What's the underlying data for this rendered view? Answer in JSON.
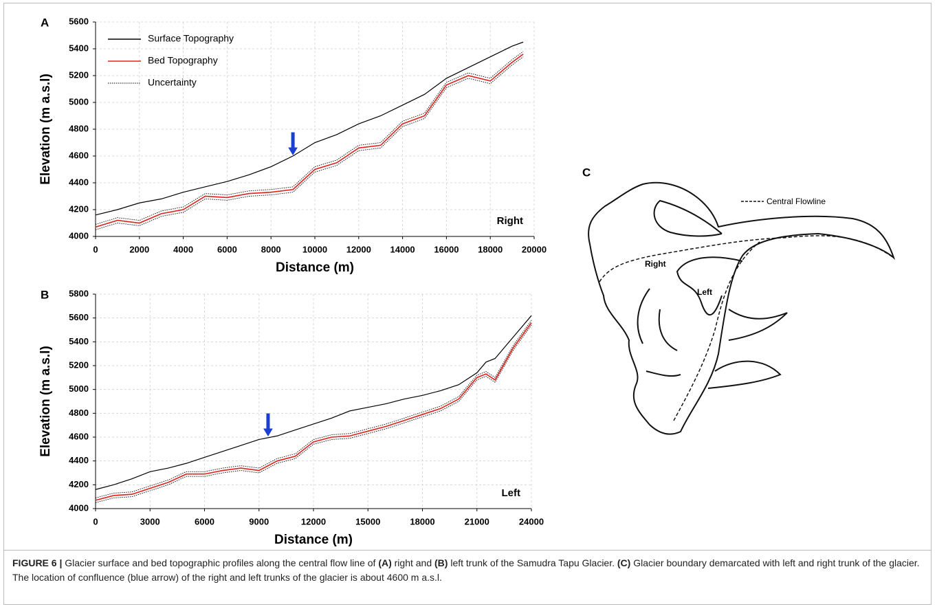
{
  "chart_data": [
    {
      "type": "line",
      "panel": "A",
      "xlabel": "Distance (m)",
      "ylabel": "Elevation (m a.s.l)",
      "annotation": "Right",
      "legend": true,
      "legend_position": "upper left",
      "grid": true,
      "xlim": [
        0,
        20000
      ],
      "xticks": [
        0,
        2000,
        4000,
        6000,
        8000,
        10000,
        12000,
        14000,
        16000,
        18000,
        20000
      ],
      "ylim": [
        4000,
        5600
      ],
      "yticks": [
        4000,
        4200,
        4400,
        4600,
        4800,
        5000,
        5200,
        5400,
        5600
      ],
      "arrow": {
        "x": 9000,
        "y": 4600,
        "color": "#1a3fd1"
      },
      "x": [
        0,
        1000,
        2000,
        3000,
        4000,
        5000,
        6000,
        7000,
        8000,
        9000,
        10000,
        11000,
        12000,
        13000,
        14000,
        15000,
        16000,
        17000,
        18000,
        19000,
        19500
      ],
      "series": [
        {
          "name": "Surface Topography",
          "color": "#000000",
          "values": [
            4160,
            4200,
            4250,
            4280,
            4330,
            4370,
            4410,
            4460,
            4520,
            4600,
            4700,
            4760,
            4840,
            4900,
            4980,
            5060,
            5180,
            5260,
            5340,
            5420,
            5450
          ]
        },
        {
          "name": "Bed Topography",
          "color": "#e0201b",
          "values": [
            4070,
            4120,
            4100,
            4170,
            4200,
            4300,
            4290,
            4320,
            4330,
            4350,
            4500,
            4550,
            4660,
            4680,
            4840,
            4900,
            5130,
            5200,
            5160,
            5300,
            5360
          ]
        },
        {
          "name": "Uncertainty",
          "color": "#000000",
          "lower": [
            4050,
            4100,
            4080,
            4150,
            4180,
            4280,
            4270,
            4300,
            4310,
            4330,
            4480,
            4530,
            4640,
            4660,
            4820,
            4880,
            5110,
            5180,
            5140,
            5280,
            5340
          ],
          "upper": [
            4090,
            4140,
            4120,
            4190,
            4220,
            4320,
            4310,
            4340,
            4350,
            4370,
            4520,
            4570,
            4680,
            4700,
            4860,
            4920,
            5150,
            5220,
            5180,
            5320,
            5380
          ]
        }
      ]
    },
    {
      "type": "line",
      "panel": "B",
      "xlabel": "Distance (m)",
      "ylabel": "Elevation (m a.s.l)",
      "annotation": "Left",
      "legend": false,
      "grid": true,
      "xlim": [
        0,
        24000
      ],
      "xticks": [
        0,
        3000,
        6000,
        9000,
        12000,
        15000,
        18000,
        21000,
        24000
      ],
      "ylim": [
        4000,
        5800
      ],
      "yticks": [
        4000,
        4200,
        4400,
        4600,
        4800,
        5000,
        5200,
        5400,
        5600,
        5800
      ],
      "arrow": {
        "x": 9500,
        "y": 4600,
        "color": "#1a3fd1"
      },
      "x": [
        0,
        1000,
        2000,
        3000,
        4000,
        5000,
        6000,
        7000,
        8000,
        9000,
        10000,
        11000,
        12000,
        13000,
        14000,
        15000,
        16000,
        17000,
        18000,
        19000,
        20000,
        21000,
        21500,
        22000,
        23000,
        24000
      ],
      "series": [
        {
          "name": "Surface Topography",
          "color": "#000000",
          "values": [
            4160,
            4200,
            4250,
            4310,
            4340,
            4380,
            4430,
            4480,
            4530,
            4580,
            4610,
            4660,
            4710,
            4760,
            4820,
            4850,
            4880,
            4920,
            4950,
            4990,
            5040,
            5140,
            5230,
            5260,
            5440,
            5620
          ]
        },
        {
          "name": "Bed Topography",
          "color": "#e0201b",
          "values": [
            4070,
            4110,
            4120,
            4170,
            4220,
            4290,
            4290,
            4320,
            4340,
            4320,
            4400,
            4440,
            4560,
            4600,
            4610,
            4650,
            4690,
            4740,
            4790,
            4840,
            4920,
            5100,
            5130,
            5080,
            5350,
            5560
          ]
        },
        {
          "name": "Uncertainty",
          "color": "#000000",
          "lower": [
            4050,
            4090,
            4100,
            4150,
            4200,
            4270,
            4270,
            4300,
            4320,
            4300,
            4380,
            4420,
            4540,
            4580,
            4590,
            4630,
            4670,
            4720,
            4770,
            4820,
            4900,
            5080,
            5110,
            5060,
            5330,
            5540
          ],
          "upper": [
            4090,
            4130,
            4140,
            4190,
            4240,
            4310,
            4310,
            4340,
            4360,
            4340,
            4420,
            4460,
            4580,
            4620,
            4630,
            4670,
            4710,
            4760,
            4810,
            4860,
            4940,
            5120,
            5150,
            5100,
            5370,
            5580
          ]
        }
      ]
    }
  ],
  "diagram": {
    "panel": "C",
    "legend": "Central Flowline",
    "labels": [
      "Right",
      "Left"
    ]
  },
  "caption": {
    "label": "FIGURE 6 |",
    "segments": [
      "Glacier surface and bed topographic profiles along the central flow line of ",
      "(A)",
      " right and ",
      "(B)",
      " left trunk of the Samudra Tapu Glacier. ",
      "(C)",
      " Glacier boundary demarcated with left and right trunk of the glacier. The location of confluence (blue arrow) of the right and left trunks of the glacier is about 4600 m a.s.l."
    ]
  }
}
